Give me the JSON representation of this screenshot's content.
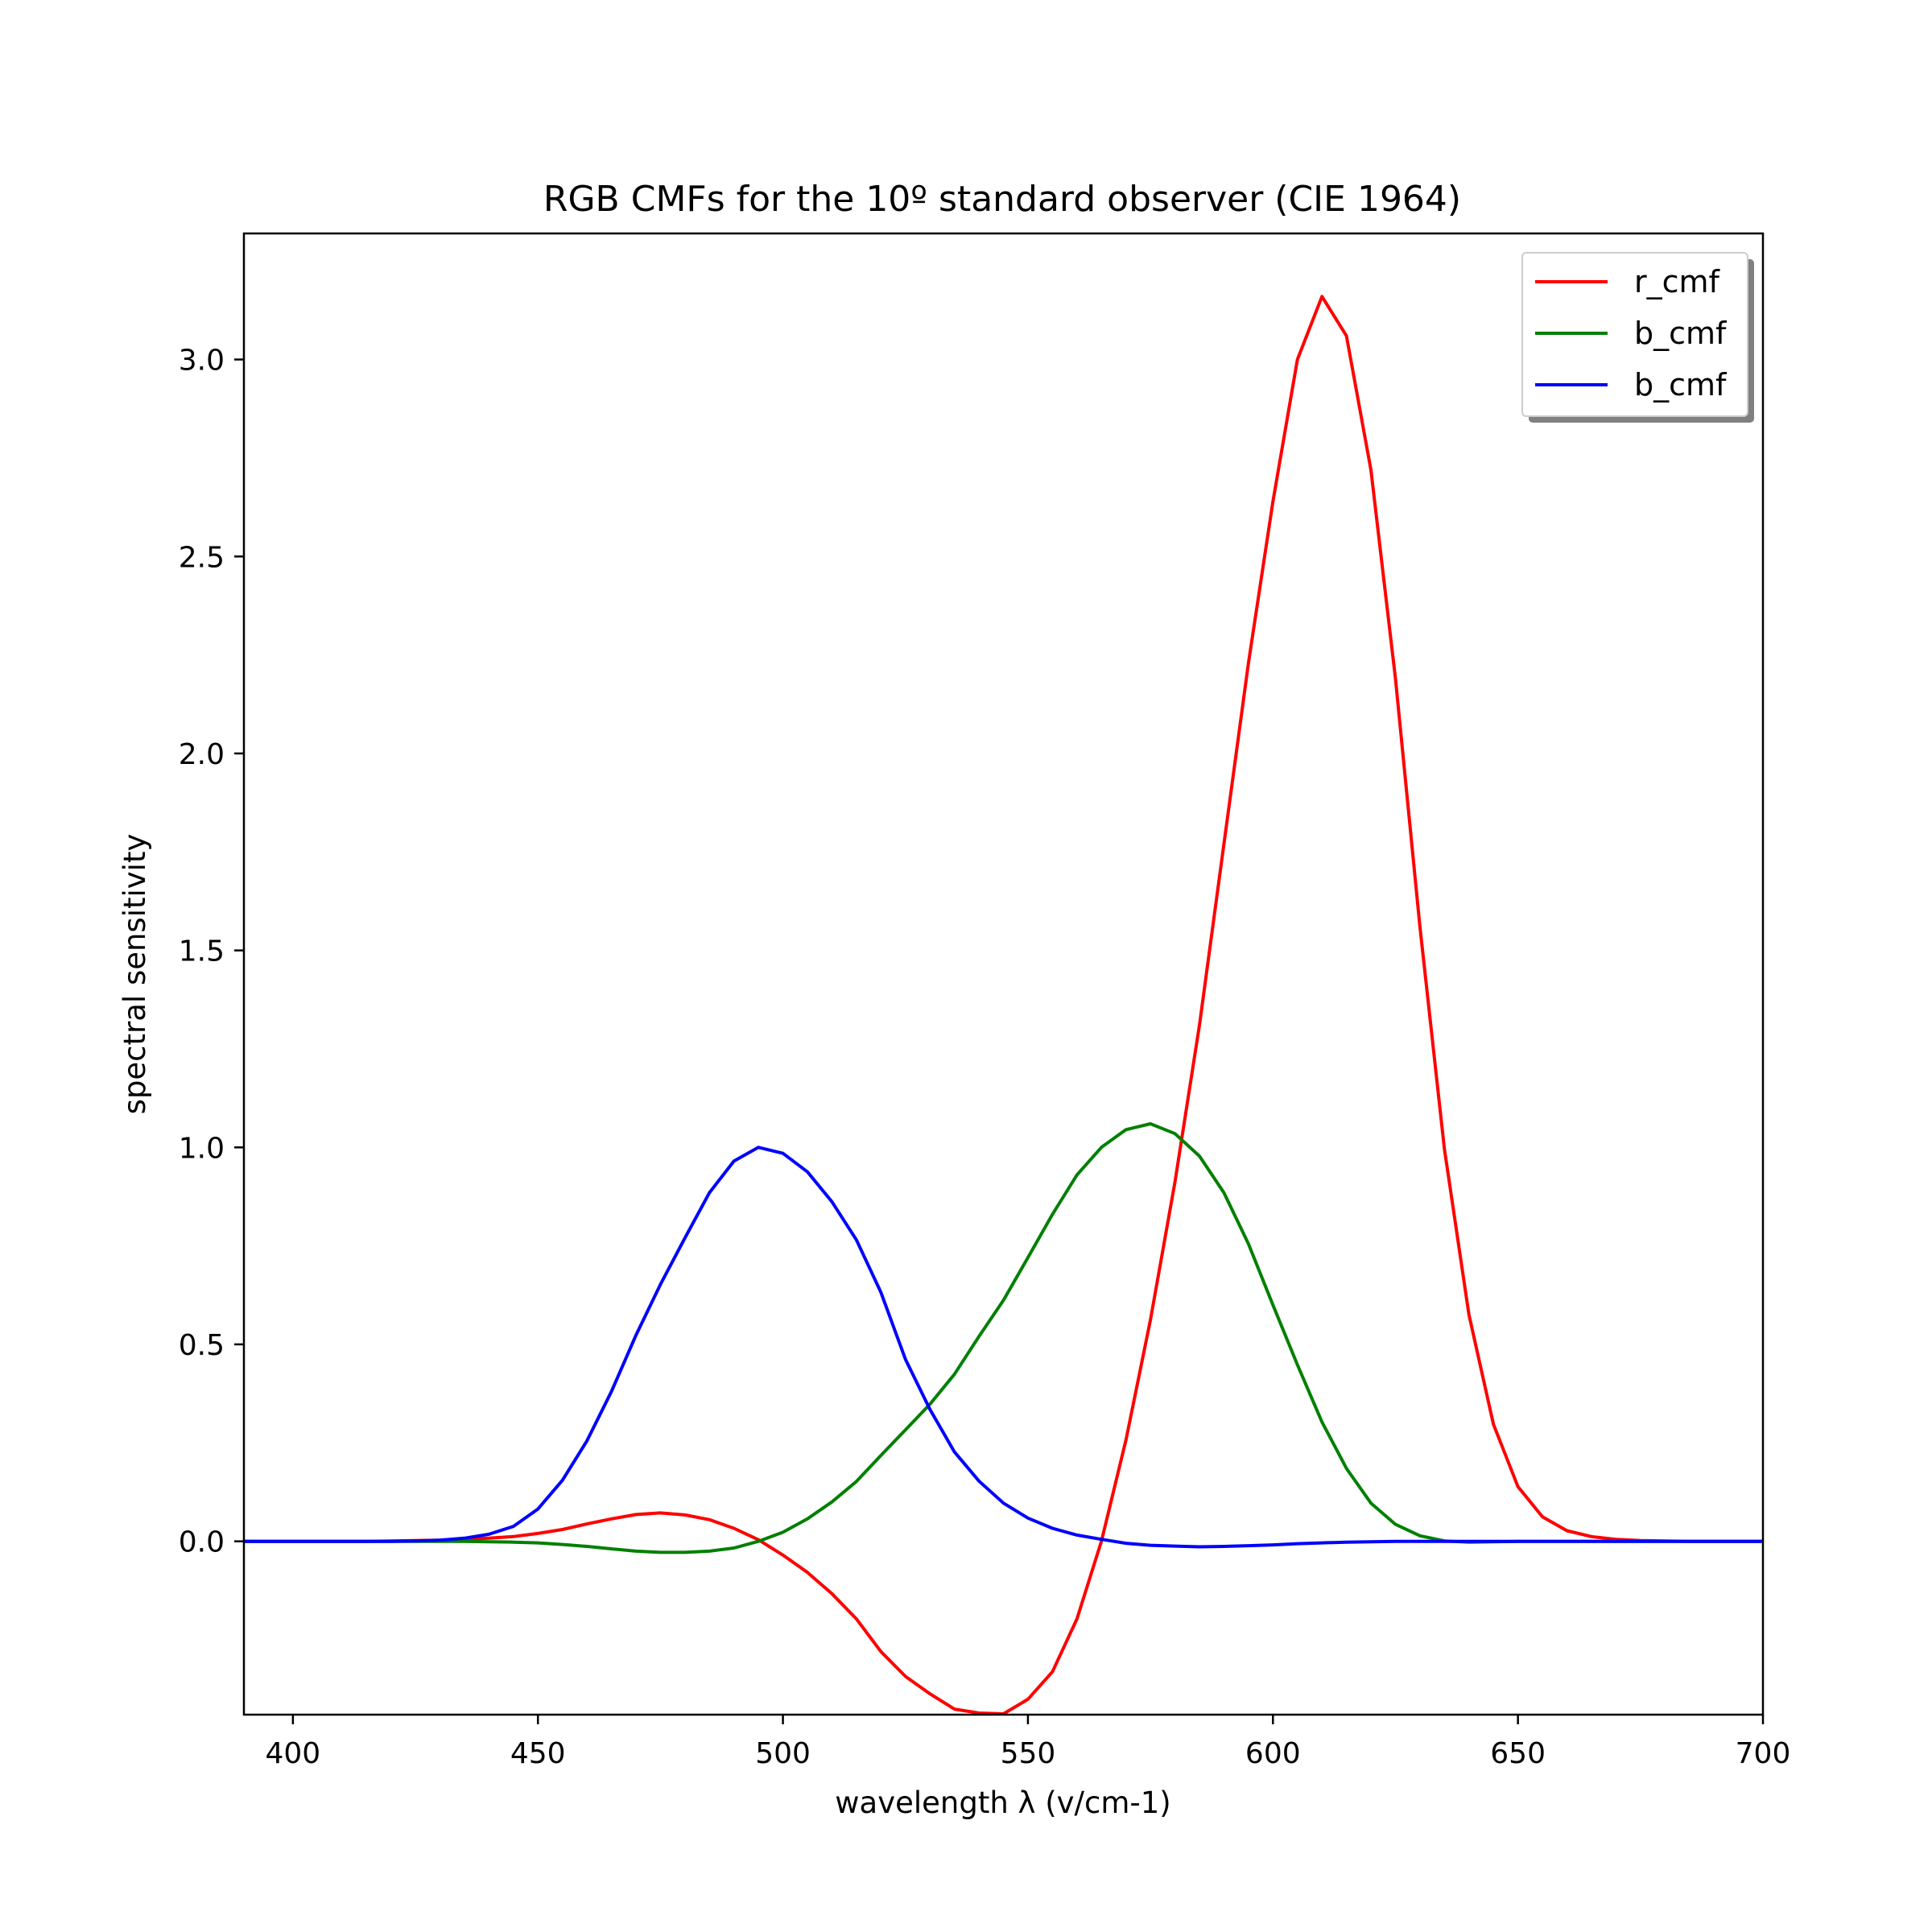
{
  "chart_data": {
    "type": "line",
    "title": "RGB CMFs for the 10º standard observer (CIE 1964)",
    "xlabel": "wavelength λ (v/cm-1)",
    "ylabel": "spectral sensitivity",
    "xlim": [
      390,
      700
    ],
    "ylim": [
      -0.44,
      3.32
    ],
    "xticks": [
      400,
      450,
      500,
      550,
      600,
      650,
      700
    ],
    "yticks": [
      0.0,
      0.5,
      1.0,
      1.5,
      2.0,
      2.5,
      3.0
    ],
    "xtick_labels": [
      "400",
      "450",
      "500",
      "550",
      "600",
      "650",
      "700"
    ],
    "ytick_labels": [
      "0.0",
      "0.5",
      "1.0",
      "1.5",
      "2.0",
      "2.5",
      "3.0"
    ],
    "grid": false,
    "legend_position": "top-right",
    "x": [
      390,
      395,
      400,
      405,
      410,
      415,
      420,
      425,
      430,
      435,
      440,
      445,
      450,
      455,
      460,
      465,
      470,
      475,
      480,
      485,
      490,
      495,
      500,
      505,
      510,
      515,
      520,
      525,
      530,
      535,
      540,
      545,
      550,
      555,
      560,
      565,
      570,
      575,
      580,
      585,
      590,
      595,
      600,
      605,
      610,
      615,
      620,
      625,
      630,
      635,
      640,
      645,
      650,
      655,
      660,
      665,
      670,
      675,
      680,
      685,
      690,
      695,
      700
    ],
    "series": [
      {
        "name": "r_cmf",
        "color": "#ff0000",
        "values": [
          0.0,
          0.0,
          0.0,
          0.0,
          0.0,
          0.0,
          0.001,
          0.002,
          0.003,
          0.005,
          0.008,
          0.012,
          0.02,
          0.03,
          0.044,
          0.057,
          0.068,
          0.072,
          0.067,
          0.055,
          0.033,
          0.004,
          -0.035,
          -0.079,
          -0.133,
          -0.197,
          -0.28,
          -0.343,
          -0.387,
          -0.426,
          -0.436,
          -0.438,
          -0.401,
          -0.331,
          -0.197,
          0.0,
          0.257,
          0.562,
          0.911,
          1.31,
          1.77,
          2.23,
          2.64,
          3.0,
          3.16,
          3.06,
          2.72,
          2.19,
          1.56,
          0.996,
          0.575,
          0.297,
          0.139,
          0.062,
          0.027,
          0.012,
          0.005,
          0.002,
          0.001,
          0.0,
          0.0,
          0.0,
          0.0
        ]
      },
      {
        "name": "b_cmf",
        "color": "#008000",
        "values": [
          0.0,
          0.0,
          0.0,
          0.0,
          0.0,
          0.0,
          0.0,
          0.0,
          0.0,
          0.0,
          -0.001,
          -0.002,
          -0.004,
          -0.008,
          -0.013,
          -0.019,
          -0.025,
          -0.028,
          -0.028,
          -0.025,
          -0.017,
          0.0,
          0.023,
          0.057,
          0.1,
          0.152,
          0.218,
          0.283,
          0.348,
          0.424,
          0.52,
          0.612,
          0.72,
          0.83,
          0.93,
          1.0,
          1.045,
          1.06,
          1.035,
          0.978,
          0.885,
          0.755,
          0.6,
          0.448,
          0.303,
          0.185,
          0.097,
          0.043,
          0.014,
          0.001,
          -0.002,
          -0.001,
          0.0,
          0.0,
          0.0,
          0.0,
          0.0,
          0.0,
          0.0,
          0.0,
          0.0,
          0.0,
          0.0
        ]
      },
      {
        "name": "b_cmf",
        "color": "#0000ff",
        "values": [
          0.0,
          0.0,
          0.0,
          0.0,
          0.0,
          0.0,
          0.0,
          0.001,
          0.003,
          0.008,
          0.018,
          0.038,
          0.082,
          0.155,
          0.255,
          0.38,
          0.523,
          0.652,
          0.77,
          0.885,
          0.965,
          1.0,
          0.985,
          0.938,
          0.862,
          0.765,
          0.632,
          0.462,
          0.335,
          0.227,
          0.153,
          0.097,
          0.059,
          0.033,
          0.016,
          0.005,
          -0.005,
          -0.01,
          -0.012,
          -0.014,
          -0.013,
          -0.011,
          -0.009,
          -0.006,
          -0.004,
          -0.002,
          -0.001,
          0.0,
          0.0,
          0.0,
          0.0,
          0.0,
          0.0,
          0.0,
          0.0,
          0.0,
          0.0,
          0.0,
          0.0,
          0.0,
          0.0,
          0.0,
          0.0
        ]
      }
    ]
  }
}
